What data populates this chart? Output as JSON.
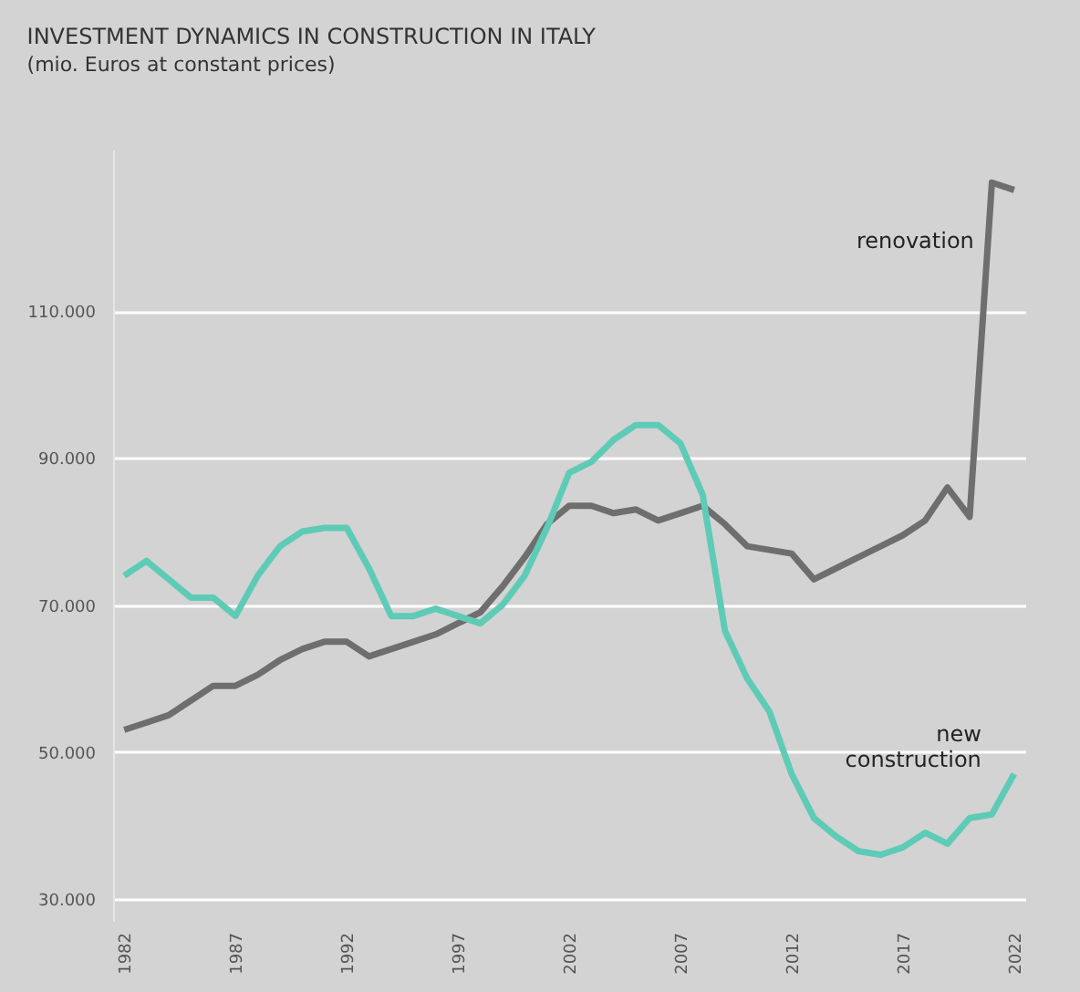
{
  "chart_data": {
    "type": "line",
    "title": "INVESTMENT DYNAMICS IN CONSTRUCTION IN ITALY",
    "subtitle": "(mio. Euros at constant prices)",
    "x": [
      1982,
      1983,
      1984,
      1985,
      1986,
      1987,
      1988,
      1989,
      1990,
      1991,
      1992,
      1993,
      1994,
      1995,
      1996,
      1997,
      1998,
      1999,
      2000,
      2001,
      2002,
      2003,
      2004,
      2005,
      2006,
      2007,
      2008,
      2009,
      2010,
      2011,
      2012,
      2013,
      2014,
      2015,
      2016,
      2017,
      2018,
      2019,
      2020,
      2021,
      2022
    ],
    "series": [
      {
        "name": "renovation",
        "color": "#6e6e6e",
        "values": [
          53000,
          54000,
          55000,
          57000,
          59000,
          59000,
          60500,
          62500,
          64000,
          65000,
          65000,
          63000,
          64000,
          65000,
          66000,
          67500,
          69000,
          72500,
          76500,
          81000,
          83500,
          83500,
          82500,
          83000,
          81500,
          82500,
          83500,
          81000,
          78000,
          77500,
          77000,
          73500,
          75000,
          76500,
          78000,
          79500,
          81500,
          86000,
          82000,
          127500,
          126500
        ]
      },
      {
        "name": "new construction",
        "color": "#5ecbb6",
        "values": [
          74000,
          76000,
          73500,
          71000,
          71000,
          68500,
          74000,
          78000,
          80000,
          80500,
          80500,
          75000,
          68500,
          68500,
          69500,
          68500,
          67500,
          70000,
          74000,
          80500,
          88000,
          89500,
          92500,
          94500,
          94500,
          92000,
          85000,
          66500,
          60000,
          55500,
          47000,
          41000,
          38500,
          36500,
          36000,
          37000,
          39000,
          37500,
          41000,
          41500,
          47000
        ]
      }
    ],
    "xlim": [
      1981.5,
      2022.5
    ],
    "xticks": [
      1982,
      1987,
      1992,
      1997,
      2002,
      2007,
      2012,
      2017,
      2022
    ],
    "ylim": [
      27000,
      132000
    ],
    "yticks": [
      {
        "value": 30000,
        "label": "30.000"
      },
      {
        "value": 50000,
        "label": "50.000"
      },
      {
        "value": 70000,
        "label": "70.000"
      },
      {
        "value": 90000,
        "label": "90.000"
      },
      {
        "value": 110000,
        "label": "110.000"
      }
    ],
    "grid": "y",
    "legend": false
  }
}
